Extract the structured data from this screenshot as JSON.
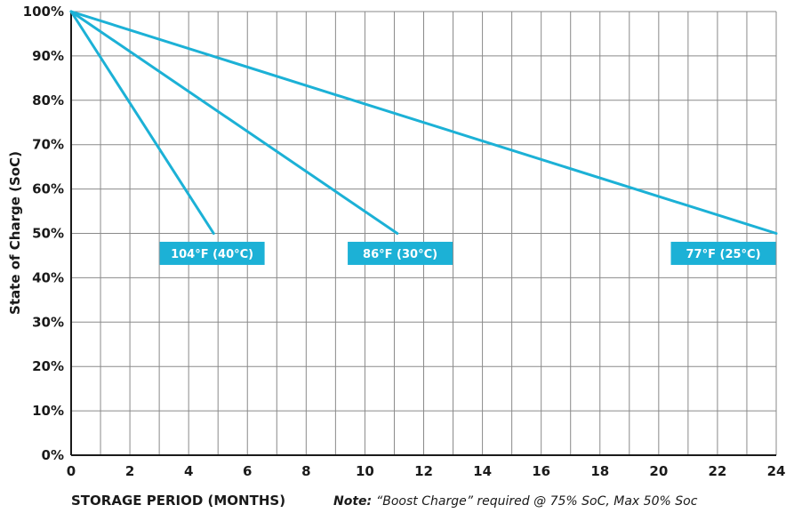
{
  "chart_data": {
    "type": "line",
    "xlabel": "STORAGE PERIOD (MONTHS)",
    "ylabel": "State of Charge (SoC)",
    "xlim": [
      0,
      24
    ],
    "ylim": [
      0,
      100
    ],
    "x_ticks": [
      "0",
      "2",
      "4",
      "6",
      "8",
      "10",
      "12",
      "14",
      "16",
      "18",
      "20",
      "22",
      "24"
    ],
    "y_ticks": [
      "0%",
      "10%",
      "20%",
      "30%",
      "40%",
      "50%",
      "60%",
      "70%",
      "80%",
      "90%",
      "100%"
    ],
    "grid": true,
    "note_label": "Note:",
    "note_text": "“Boost Charge” required @ 75% SoC, Max 50% Soc",
    "line_color": "#1cb1d6",
    "series": [
      {
        "name": "104°F (40°C)",
        "x": [
          0,
          4.85
        ],
        "y": [
          100,
          50
        ],
        "label_x": 4.8,
        "label_y": 45.5
      },
      {
        "name": "86°F (30°C)",
        "x": [
          0,
          11.1
        ],
        "y": [
          100,
          50
        ],
        "label_x": 11.2,
        "label_y": 45.5
      },
      {
        "name": "77°F (25°C)",
        "x": [
          0,
          24
        ],
        "y": [
          100,
          50
        ],
        "label_x": 22.2,
        "label_y": 45.5
      }
    ]
  }
}
